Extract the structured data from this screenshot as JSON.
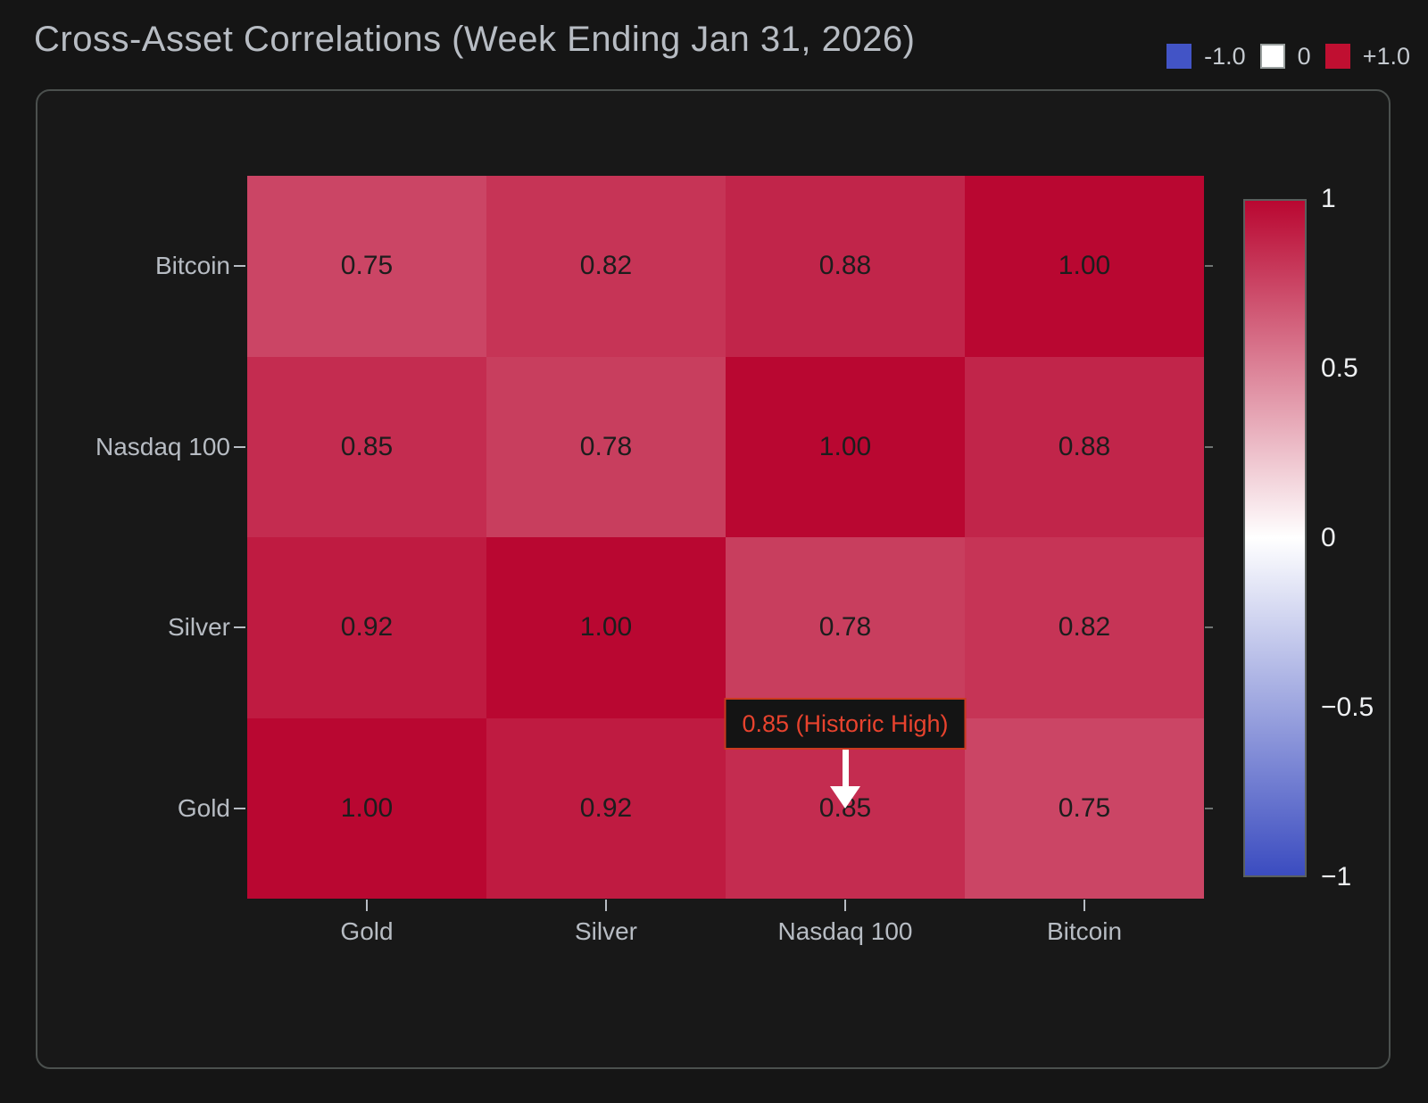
{
  "page": {
    "title": "Cross-Asset Correlations (Week Ending Jan 31, 2026)"
  },
  "legend": {
    "items": [
      {
        "label": "-1.0",
        "color": "#4254c6",
        "border": null
      },
      {
        "label": "0",
        "color": "#ffffff",
        "border": "#9aa09f"
      },
      {
        "label": "+1.0",
        "color": "#c00f31",
        "border": null
      }
    ]
  },
  "chart_data": {
    "type": "heatmap",
    "title": "Cross-Asset Correlations (Week Ending Jan 31, 2026)",
    "x_categories": [
      "Gold",
      "Silver",
      "Nasdaq 100",
      "Bitcoin"
    ],
    "y_categories": [
      "Bitcoin",
      "Nasdaq 100",
      "Silver",
      "Gold"
    ],
    "matrix": [
      [
        0.75,
        0.82,
        0.88,
        1.0
      ],
      [
        0.85,
        0.78,
        1.0,
        0.88
      ],
      [
        0.92,
        1.0,
        0.78,
        0.82
      ],
      [
        1.0,
        0.92,
        0.85,
        0.75
      ]
    ],
    "value_decimals": 2,
    "colormap": {
      "min": -1,
      "mid": 0,
      "max": 1,
      "min_color": "#3b4cc0",
      "mid_color": "#ffffff",
      "max_color": "#b90731"
    },
    "colorbar_ticks": [
      {
        "value": 1,
        "label": "1"
      },
      {
        "value": 0.5,
        "label": "0.5"
      },
      {
        "value": 0,
        "label": "0"
      },
      {
        "value": -0.5,
        "label": "−0.5"
      },
      {
        "value": -1,
        "label": "−1"
      }
    ],
    "annotation": {
      "text": "0.85 (Historic High)",
      "col": "Nasdaq 100",
      "row": "Gold",
      "value": 0.85
    }
  }
}
